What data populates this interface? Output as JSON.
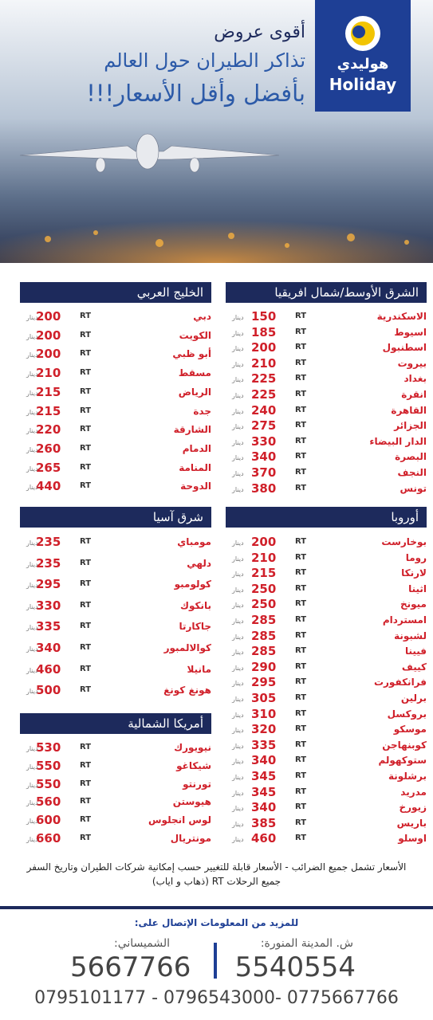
{
  "header": {
    "logo_ar": "هوليدي",
    "logo_en": "Holiday",
    "line1": "أقوى عروض",
    "line2": "تذاكر الطيران حول العالم",
    "line3": "بأفضل وأقل الأسعار!!!"
  },
  "rt_label": "RT",
  "currency": "دينار",
  "sections": [
    {
      "title": "الشرق الأوسط/شمال افريقيا",
      "rows": [
        {
          "city": "الاسكندرية",
          "price": 150
        },
        {
          "city": "اسيوط",
          "price": 185
        },
        {
          "city": "اسطنبول",
          "price": 200
        },
        {
          "city": "بيروت",
          "price": 210
        },
        {
          "city": "بغداد",
          "price": 225
        },
        {
          "city": "انقرة",
          "price": 225
        },
        {
          "city": "القاهرة",
          "price": 240
        },
        {
          "city": "الجزائر",
          "price": 275
        },
        {
          "city": "الدار البيضاء",
          "price": 330
        },
        {
          "city": "البصرة",
          "price": 340
        },
        {
          "city": "النجف",
          "price": 370
        },
        {
          "city": "تونس",
          "price": 380
        }
      ]
    },
    {
      "title": "الخليج العربي",
      "rows": [
        {
          "city": "دبي",
          "price": 200
        },
        {
          "city": "الكويت",
          "price": 200
        },
        {
          "city": "أبو ظبي",
          "price": 200
        },
        {
          "city": "مسقط",
          "price": 210
        },
        {
          "city": "الرياض",
          "price": 215
        },
        {
          "city": "جدة",
          "price": 215
        },
        {
          "city": "الشارقة",
          "price": 220
        },
        {
          "city": "الدمام",
          "price": 260
        },
        {
          "city": "المنامة",
          "price": 265
        },
        {
          "city": "الدوحة",
          "price": 440
        }
      ]
    },
    {
      "title": "أوروبا",
      "rows": [
        {
          "city": "بوخارست",
          "price": 200
        },
        {
          "city": "روما",
          "price": 210
        },
        {
          "city": "لارنكا",
          "price": 215
        },
        {
          "city": "اثينا",
          "price": 250
        },
        {
          "city": "ميونخ",
          "price": 250
        },
        {
          "city": "امستردام",
          "price": 285
        },
        {
          "city": "لشبونة",
          "price": 285
        },
        {
          "city": "فيينا",
          "price": 285
        },
        {
          "city": "كييف",
          "price": 290
        },
        {
          "city": "فرانكفورت",
          "price": 295
        },
        {
          "city": "برلين",
          "price": 305
        },
        {
          "city": "بروكسل",
          "price": 310
        },
        {
          "city": "موسكو",
          "price": 320
        },
        {
          "city": "كوبنهاجن",
          "price": 335
        },
        {
          "city": "ستوكهولم",
          "price": 340
        },
        {
          "city": "برشلونة",
          "price": 345
        },
        {
          "city": "مدريد",
          "price": 345
        },
        {
          "city": "زيورخ",
          "price": 340
        },
        {
          "city": "باريس",
          "price": 385
        },
        {
          "city": "اوسلو",
          "price": 460
        }
      ]
    },
    {
      "title": "شرق آسيا",
      "rows": [
        {
          "city": "مومباي",
          "price": 235
        },
        {
          "city": "دلهي",
          "price": 235
        },
        {
          "city": "كولومبو",
          "price": 295
        },
        {
          "city": "بانكوك",
          "price": 330
        },
        {
          "city": "جاكارتا",
          "price": 335
        },
        {
          "city": "كوالالمبور",
          "price": 340
        },
        {
          "city": "مانيلا",
          "price": 460
        },
        {
          "city": "هونغ كونغ",
          "price": 500
        }
      ]
    },
    {
      "title": "أمريكا الشمالية",
      "rows": [
        {
          "city": "نيويورك",
          "price": 530
        },
        {
          "city": "شيكاغو",
          "price": 550
        },
        {
          "city": "تورنتو",
          "price": 550
        },
        {
          "city": "هيوستن",
          "price": 560
        },
        {
          "city": "لوس انجلوس",
          "price": 600
        },
        {
          "city": "مونتريال",
          "price": 660
        }
      ]
    }
  ],
  "notes": [
    "الأسعار تشمل جميع الضرائب - الأسعار قابلة للتغيير حسب إمكانية شركات الطيران وتاريخ السفر",
    "جميع الرحلات RT (ذهاب و اياب)"
  ],
  "contact": {
    "title": "للمزيد من المعلومات الإتصال على:",
    "branches": [
      {
        "name": "ش. المدينة المنورة:",
        "phone": "5540554"
      },
      {
        "name": "الشميساني:",
        "phone": "5667766"
      }
    ],
    "mobiles": "0795101177 - 0796543000- 0775667766"
  }
}
